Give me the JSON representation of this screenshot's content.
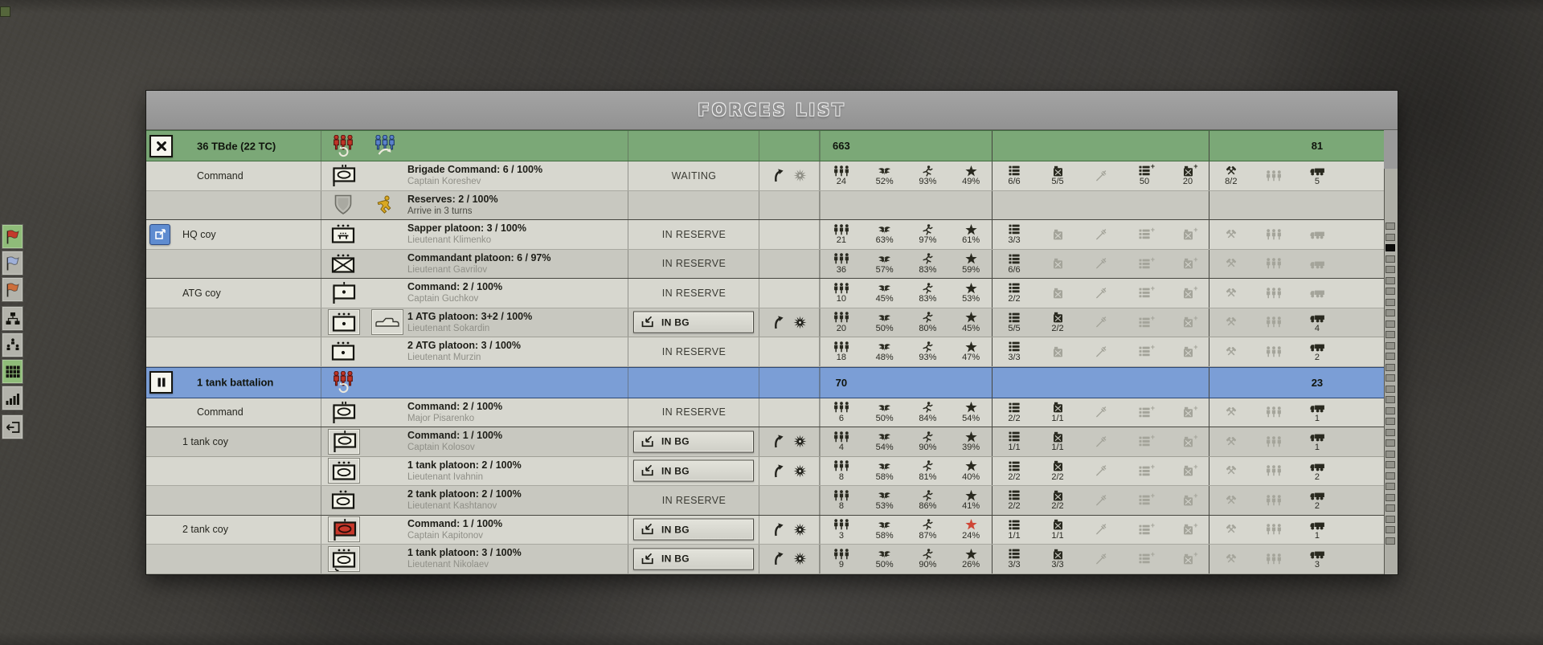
{
  "title": "FORCES LIST",
  "colors": {
    "header_green": "#7ba877",
    "header_blue": "#7b9ed6",
    "row_light": "#d7d7cf",
    "row_dark": "#c8c8c0",
    "red_star": "#cf4636",
    "flag_red": "#c23a2c",
    "flag_blue": "#9fb0d8",
    "flag_orange": "#cd6f3c"
  },
  "sidebar": {
    "buttons": [
      {
        "name": "flag-red-button",
        "icon": "flag-icon",
        "color": "#c23a2c",
        "selected": true,
        "gap": false
      },
      {
        "name": "flag-blue-button",
        "icon": "flag-icon",
        "color": "#9fb0d8",
        "selected": false,
        "gap": false
      },
      {
        "name": "flag-orange-button",
        "icon": "flag-icon",
        "color": "#cd6f3c",
        "selected": false,
        "gap": false
      },
      {
        "name": "org-chart-button",
        "icon": "org-chart-icon",
        "selected": false,
        "gap": true
      },
      {
        "name": "org-people-button",
        "icon": "org-people-icon",
        "selected": false,
        "gap": false
      },
      {
        "name": "forces-grid-button",
        "icon": "grid-icon",
        "selected": true,
        "gap": false
      },
      {
        "name": "bar-chart-button",
        "icon": "bar-chart-icon",
        "selected": false,
        "gap": false
      },
      {
        "name": "exit-button",
        "icon": "exit-icon",
        "selected": false,
        "gap": true
      }
    ]
  },
  "stat_columns": [
    {
      "key": "men",
      "icon": "men-icon",
      "group": "a"
    },
    {
      "key": "morale",
      "icon": "eagle-icon",
      "group": "a"
    },
    {
      "key": "fitness",
      "icon": "runner-icon",
      "group": "a"
    },
    {
      "key": "experience",
      "icon": "star-icon",
      "group": "a"
    },
    {
      "key": "ammo",
      "icon": "ammo-icon",
      "group": "b"
    },
    {
      "key": "fuel",
      "icon": "fuel-icon",
      "group": "b"
    },
    {
      "key": "melee",
      "icon": "melee-icon",
      "group": "b",
      "always_dim": true
    },
    {
      "key": "ammo_resupply",
      "icon": "ammo-plus-icon",
      "group": "b"
    },
    {
      "key": "fuel_resupply",
      "icon": "fuel-plus-icon",
      "group": "b"
    },
    {
      "key": "repair",
      "icon": "repair-icon",
      "group": "c"
    },
    {
      "key": "reinforcements",
      "icon": "reinf-icon",
      "group": "c",
      "always_dim": true
    },
    {
      "key": "trucks",
      "icon": "truck-icon",
      "group": "c"
    }
  ],
  "rows": [
    {
      "kind": "group",
      "color": "green",
      "button": "close",
      "label": "36 TBde (22 TC)",
      "badges": [
        "squad-refresh-red-icon",
        "squad-arrow-blue-icon"
      ],
      "men_total": "663",
      "trucks_total": "81"
    },
    {
      "kind": "unit",
      "shade": "light",
      "tree_label": "Command",
      "tree_indent": 2,
      "unit_icons": [
        {
          "glyph": "flag-oval",
          "ticks": 2
        }
      ],
      "name": "Brigade Command: 6 / 100%",
      "officer": "Captain Koreshev",
      "status": "WAITING",
      "status_kind": "waiting",
      "actions": {
        "arrow": true,
        "burst": true,
        "burst_dim": true
      },
      "stats": [
        "24",
        "52%",
        "93%",
        "49%",
        "6/6",
        "5/5",
        null,
        "50",
        "20",
        "8/2",
        null,
        "5"
      ]
    },
    {
      "kind": "unit",
      "shade": "dark",
      "unit_icons": [
        {
          "glyph": "shield"
        },
        {
          "glyph": "soldier"
        }
      ],
      "name": "Reserves: 2 / 100%",
      "officer": "Arrive in 3 turns",
      "officer_dark": true,
      "status": "",
      "status_kind": "none",
      "no_stats": true
    },
    {
      "kind": "unit",
      "shade": "light",
      "sep": true,
      "tree_button": "share",
      "tree_label": "HQ coy",
      "unit_icons": [
        {
          "glyph": "box-sapper",
          "dots": 3
        }
      ],
      "name": "Sapper platoon: 3 / 100%",
      "officer": "Lieutenant Klimenko",
      "status": "IN RESERVE",
      "status_kind": "reserve",
      "stats": [
        "21",
        "63%",
        "97%",
        "61%",
        "3/3",
        null,
        null,
        null,
        null,
        null,
        null,
        null
      ]
    },
    {
      "kind": "unit",
      "shade": "dark",
      "unit_icons": [
        {
          "glyph": "box-x",
          "dots": 3
        }
      ],
      "name": "Commandant platoon: 6 / 97%",
      "officer": "Lieutenant Gavrilov",
      "status": "IN RESERVE",
      "status_kind": "reserve",
      "stats": [
        "36",
        "57%",
        "83%",
        "59%",
        "6/6",
        null,
        null,
        null,
        null,
        null,
        null,
        null
      ]
    },
    {
      "kind": "unit",
      "shade": "light",
      "sep": true,
      "tree_label": "ATG coy",
      "unit_icons": [
        {
          "glyph": "flag-dot",
          "ticks": 1
        }
      ],
      "name": "Command: 2 / 100%",
      "officer": "Captain Guchkov",
      "status": "IN RESERVE",
      "status_kind": "reserve",
      "stats": [
        "10",
        "45%",
        "83%",
        "53%",
        "2/2",
        null,
        null,
        null,
        null,
        null,
        null,
        null
      ]
    },
    {
      "kind": "unit",
      "shade": "dark",
      "unit_icons": [
        {
          "glyph": "box-dot",
          "dots": 3,
          "framed": true
        },
        {
          "glyph": "car",
          "framed": true
        }
      ],
      "name": "1 ATG platoon: 3+2 / 100%",
      "officer": "Lieutenant Sokardin",
      "status": "IN BG",
      "status_kind": "inbg",
      "actions": {
        "arrow": true,
        "burst": true
      },
      "stats": [
        "20",
        "50%",
        "80%",
        "45%",
        "5/5",
        "2/2",
        null,
        null,
        null,
        null,
        null,
        "4"
      ]
    },
    {
      "kind": "unit",
      "shade": "light",
      "unit_icons": [
        {
          "glyph": "box-dot",
          "dots": 3
        }
      ],
      "name": "2 ATG platoon: 3 / 100%",
      "officer": "Lieutenant Murzin",
      "status": "IN RESERVE",
      "status_kind": "reserve",
      "stats": [
        "18",
        "48%",
        "93%",
        "47%",
        "3/3",
        null,
        null,
        null,
        null,
        null,
        null,
        "2"
      ]
    },
    {
      "kind": "group",
      "color": "blue",
      "button": "pause",
      "label": "1 tank battalion",
      "badges": [
        "squad-refresh-red-icon"
      ],
      "men_total": "70",
      "trucks_total": "23"
    },
    {
      "kind": "unit",
      "shade": "light",
      "tree_label": "Command",
      "tree_indent": 2,
      "unit_icons": [
        {
          "glyph": "flag-oval",
          "ticks": 2
        }
      ],
      "name": "Command: 2 / 100%",
      "officer": "Major Pisarenko",
      "status": "IN RESERVE",
      "status_kind": "reserve",
      "stats": [
        "6",
        "50%",
        "84%",
        "54%",
        "2/2",
        "1/1",
        null,
        null,
        null,
        null,
        null,
        "1"
      ]
    },
    {
      "kind": "unit",
      "shade": "dark",
      "sep": true,
      "tree_label": "1 tank coy",
      "unit_icons": [
        {
          "glyph": "flag-oval",
          "ticks": 1,
          "framed": true
        }
      ],
      "name": "Command: 1 / 100%",
      "officer": "Captain Kolosov",
      "status": "IN BG",
      "status_kind": "inbg",
      "actions": {
        "arrow": true,
        "burst": true
      },
      "stats": [
        "4",
        "54%",
        "90%",
        "39%",
        "1/1",
        "1/1",
        null,
        null,
        null,
        null,
        null,
        "1"
      ]
    },
    {
      "kind": "unit",
      "shade": "light",
      "unit_icons": [
        {
          "glyph": "box-oval",
          "dots": 3,
          "framed": true
        }
      ],
      "name": "1 tank platoon: 2 / 100%",
      "officer": "Lieutenant Ivahnin",
      "status": "IN BG",
      "status_kind": "inbg",
      "actions": {
        "arrow": true,
        "burst": true
      },
      "stats": [
        "8",
        "58%",
        "81%",
        "40%",
        "2/2",
        "2/2",
        null,
        null,
        null,
        null,
        null,
        "2"
      ]
    },
    {
      "kind": "unit",
      "shade": "dark",
      "unit_icons": [
        {
          "glyph": "box-oval",
          "dots": 2
        }
      ],
      "name": "2 tank platoon: 2 / 100%",
      "officer": "Lieutenant Kashtanov",
      "status": "IN RESERVE",
      "status_kind": "reserve",
      "stats": [
        "8",
        "53%",
        "86%",
        "41%",
        "2/2",
        "2/2",
        null,
        null,
        null,
        null,
        null,
        "2"
      ]
    },
    {
      "kind": "unit",
      "shade": "light",
      "sep": true,
      "tree_label": "2 tank coy",
      "unit_icons": [
        {
          "glyph": "flag-oval",
          "red": true,
          "ticks": 1,
          "framed": true
        }
      ],
      "name": "Command: 1 / 100%",
      "officer": "Captain Kapitonov",
      "status": "IN BG",
      "status_kind": "inbg",
      "actions": {
        "arrow": true,
        "burst": true
      },
      "red_star": true,
      "stats": [
        "3",
        "58%",
        "87%",
        "24%",
        "1/1",
        "1/1",
        null,
        null,
        null,
        null,
        null,
        "1"
      ]
    },
    {
      "kind": "unit",
      "shade": "dark",
      "unit_icons": [
        {
          "glyph": "box-oval-hook",
          "dots": 3,
          "framed": true
        }
      ],
      "name": "1 tank platoon: 3 / 100%",
      "officer": "Lieutenant Nikolaev",
      "status": "IN BG",
      "status_kind": "inbg",
      "actions": {
        "arrow": true,
        "burst": true
      },
      "stats": [
        "9",
        "50%",
        "90%",
        "26%",
        "3/3",
        "3/3",
        null,
        null,
        null,
        null,
        null,
        "3"
      ]
    }
  ],
  "scrollbar": {
    "segments": 30,
    "active_index": 2
  }
}
